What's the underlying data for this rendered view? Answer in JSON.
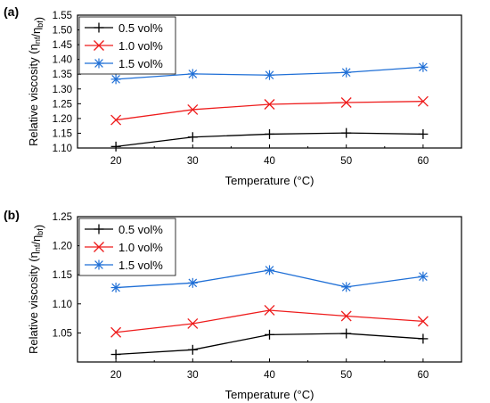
{
  "chart_data": [
    {
      "type": "line",
      "panel_label": "(a)",
      "xlabel": "Temperature (°C)",
      "ylabel": "Relative viscosity (η_nf/η_bf)",
      "x": [
        20,
        30,
        40,
        50,
        60
      ],
      "xlim": [
        15,
        65
      ],
      "xticks": [
        20,
        30,
        40,
        50,
        60
      ],
      "ylim": [
        1.1,
        1.55
      ],
      "yticks": [
        "1.10",
        "1.15",
        "1.20",
        "1.25",
        "1.30",
        "1.35",
        "1.40",
        "1.45",
        "1.50",
        "1.55"
      ],
      "grid": false,
      "legend_position": "top-left",
      "series": [
        {
          "name": "0.5 vol%",
          "color": "#000000",
          "marker": "plus",
          "values": [
            1.105,
            1.137,
            1.147,
            1.151,
            1.147
          ]
        },
        {
          "name": "1.0 vol%",
          "color": "#ee1c1c",
          "marker": "x",
          "values": [
            1.195,
            1.23,
            1.248,
            1.254,
            1.258
          ]
        },
        {
          "name": "1.5 vol%",
          "color": "#1f6fd6",
          "marker": "asterisk",
          "values": [
            1.333,
            1.351,
            1.347,
            1.356,
            1.374
          ]
        }
      ]
    },
    {
      "type": "line",
      "panel_label": "(b)",
      "xlabel": "Temperature (°C)",
      "ylabel": "Relative viscosity (η_nf/η_bf)",
      "x": [
        20,
        30,
        40,
        50,
        60
      ],
      "xlim": [
        15,
        65
      ],
      "xticks": [
        20,
        30,
        40,
        50,
        60
      ],
      "ylim": [
        1.0,
        1.25
      ],
      "yticks": [
        "1.05",
        "1.10",
        "1.15",
        "1.20",
        "1.25"
      ],
      "grid": false,
      "legend_position": "top-left",
      "series": [
        {
          "name": "0.5 vol%",
          "color": "#000000",
          "marker": "plus",
          "values": [
            1.013,
            1.021,
            1.047,
            1.049,
            1.04
          ]
        },
        {
          "name": "1.0 vol%",
          "color": "#ee1c1c",
          "marker": "x",
          "values": [
            1.051,
            1.066,
            1.089,
            1.079,
            1.07
          ]
        },
        {
          "name": "1.5 vol%",
          "color": "#1f6fd6",
          "marker": "asterisk",
          "values": [
            1.128,
            1.136,
            1.158,
            1.129,
            1.147
          ]
        }
      ]
    }
  ]
}
